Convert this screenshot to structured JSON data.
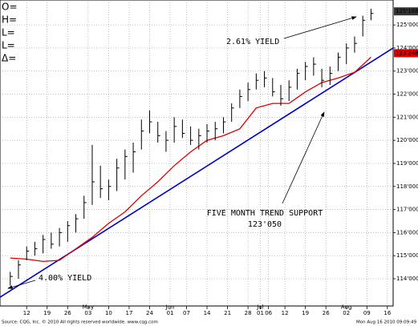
{
  "chart_data": {
    "type": "ohlc",
    "header_labels": [
      "O=",
      "H=",
      "L=",
      "L=",
      "Δ="
    ],
    "xlim": [
      -2.5,
      93.4
    ],
    "ylim": [
      112.82,
      126.08
    ],
    "grid": true,
    "xticks": [
      {
        "value": 4,
        "label": "12"
      },
      {
        "value": 9,
        "label": "19"
      },
      {
        "value": 14,
        "label": "26"
      },
      {
        "value": 19,
        "label": "03"
      },
      {
        "value": 24,
        "label": "10"
      },
      {
        "value": 29,
        "label": "17"
      },
      {
        "value": 34,
        "label": "24"
      },
      {
        "value": 39,
        "label": "01"
      },
      {
        "value": 43,
        "label": "07"
      },
      {
        "value": 48,
        "label": "14"
      },
      {
        "value": 53,
        "label": "21"
      },
      {
        "value": 58,
        "label": "28"
      },
      {
        "value": 61,
        "label": "01"
      },
      {
        "value": 63,
        "label": "06"
      },
      {
        "value": 67,
        "label": "12"
      },
      {
        "value": 72,
        "label": "19"
      },
      {
        "value": 77,
        "label": "26"
      },
      {
        "value": 82,
        "label": "02"
      },
      {
        "value": 87,
        "label": "09"
      },
      {
        "value": 92,
        "label": "16"
      }
    ],
    "month_ticks": [
      {
        "value": 19,
        "label": "May"
      },
      {
        "value": 39,
        "label": "Jun"
      },
      {
        "value": 61,
        "label": "Jul"
      },
      {
        "value": 82,
        "label": "Aug"
      }
    ],
    "yticks": [
      {
        "value": 114,
        "label": "114'000"
      },
      {
        "value": 115,
        "label": "115'000"
      },
      {
        "value": 116,
        "label": "116'000"
      },
      {
        "value": 117,
        "label": "117'000"
      },
      {
        "value": 118,
        "label": "118'000"
      },
      {
        "value": 119,
        "label": "119'000"
      },
      {
        "value": 120,
        "label": "120'000"
      },
      {
        "value": 121,
        "label": "121'000"
      },
      {
        "value": 122,
        "label": "122'000"
      },
      {
        "value": 123,
        "label": "123'000"
      },
      {
        "value": 124,
        "label": "124'000"
      },
      {
        "value": 125,
        "label": "125'000"
      }
    ],
    "bars": {
      "color": "#000000",
      "x": [
        0,
        2,
        4,
        6,
        8,
        10,
        12,
        14,
        16,
        18,
        20,
        22,
        24,
        26,
        28,
        30,
        32,
        34,
        36,
        38,
        40,
        42,
        44,
        46,
        48,
        50,
        52,
        54,
        56,
        58,
        60,
        62,
        64,
        66,
        68,
        70,
        72,
        74,
        76,
        78,
        80,
        82,
        84,
        86,
        88
      ],
      "high": [
        114.3,
        114.8,
        115.4,
        115.6,
        115.9,
        116.0,
        116.2,
        116.5,
        116.8,
        117.6,
        119.8,
        118.9,
        118.3,
        119.2,
        119.6,
        119.9,
        120.9,
        121.3,
        120.8,
        120.4,
        121.0,
        120.9,
        120.6,
        120.5,
        120.7,
        120.8,
        121.0,
        121.6,
        122.2,
        122.5,
        122.9,
        123.0,
        122.7,
        122.4,
        122.6,
        123.1,
        123.4,
        123.6,
        123.1,
        123.2,
        123.8,
        124.2,
        124.5,
        125.4,
        125.7
      ],
      "low": [
        113.7,
        114.0,
        114.8,
        115.0,
        115.1,
        115.3,
        115.4,
        115.6,
        116.0,
        116.6,
        117.2,
        117.5,
        117.4,
        117.8,
        118.3,
        118.6,
        119.6,
        120.3,
        119.9,
        119.5,
        119.9,
        120.1,
        119.8,
        119.6,
        119.9,
        120.0,
        120.3,
        120.8,
        121.4,
        121.7,
        122.2,
        122.3,
        121.9,
        121.5,
        121.7,
        122.2,
        122.6,
        122.8,
        122.3,
        122.4,
        123.0,
        123.3,
        123.8,
        124.5,
        125.2
      ],
      "close": [
        114.1,
        114.6,
        115.2,
        115.3,
        115.7,
        115.5,
        116.0,
        116.3,
        116.6,
        117.3,
        118.2,
        117.9,
        118.0,
        118.8,
        119.3,
        119.5,
        120.4,
        120.8,
        120.2,
        120.0,
        120.6,
        120.3,
        120.0,
        120.2,
        120.4,
        120.5,
        120.8,
        121.4,
        121.9,
        122.2,
        122.6,
        122.7,
        122.1,
        121.8,
        122.3,
        122.9,
        123.2,
        123.3,
        122.6,
        122.9,
        123.6,
        124.0,
        124.2,
        125.2,
        125.5
      ]
    },
    "moving_average": {
      "color": "#e00000",
      "x": [
        0,
        4,
        8,
        12,
        16,
        20,
        24,
        28,
        32,
        36,
        40,
        44,
        48,
        52,
        56,
        60,
        64,
        68,
        72,
        76,
        80,
        84,
        88
      ],
      "values": [
        114.9,
        114.85,
        114.75,
        114.8,
        115.3,
        115.8,
        116.4,
        116.9,
        117.6,
        118.2,
        118.9,
        119.5,
        120.0,
        120.2,
        120.5,
        121.4,
        121.6,
        121.6,
        122.1,
        122.5,
        122.7,
        122.95,
        123.6
      ]
    },
    "trend_line": {
      "color": "#0000cc",
      "x": [
        -2.5,
        93.4
      ],
      "values": [
        113.2,
        124.0
      ]
    },
    "last_price": {
      "value": 125.5875,
      "label": "125'188"
    },
    "average_price": {
      "value": 123.775,
      "label": "123'248"
    },
    "annotations": [
      "2.61% YIELD",
      "FIVE MONTH TREND SUPPORT",
      "123'050",
      "4.00% YIELD"
    ],
    "footer": {
      "source": "Source: CQG, Inc. © 2010 All rights reserved worldwide. www.cqg.com",
      "timestamp": "Mon Aug 16 2010 09:09:49"
    }
  }
}
